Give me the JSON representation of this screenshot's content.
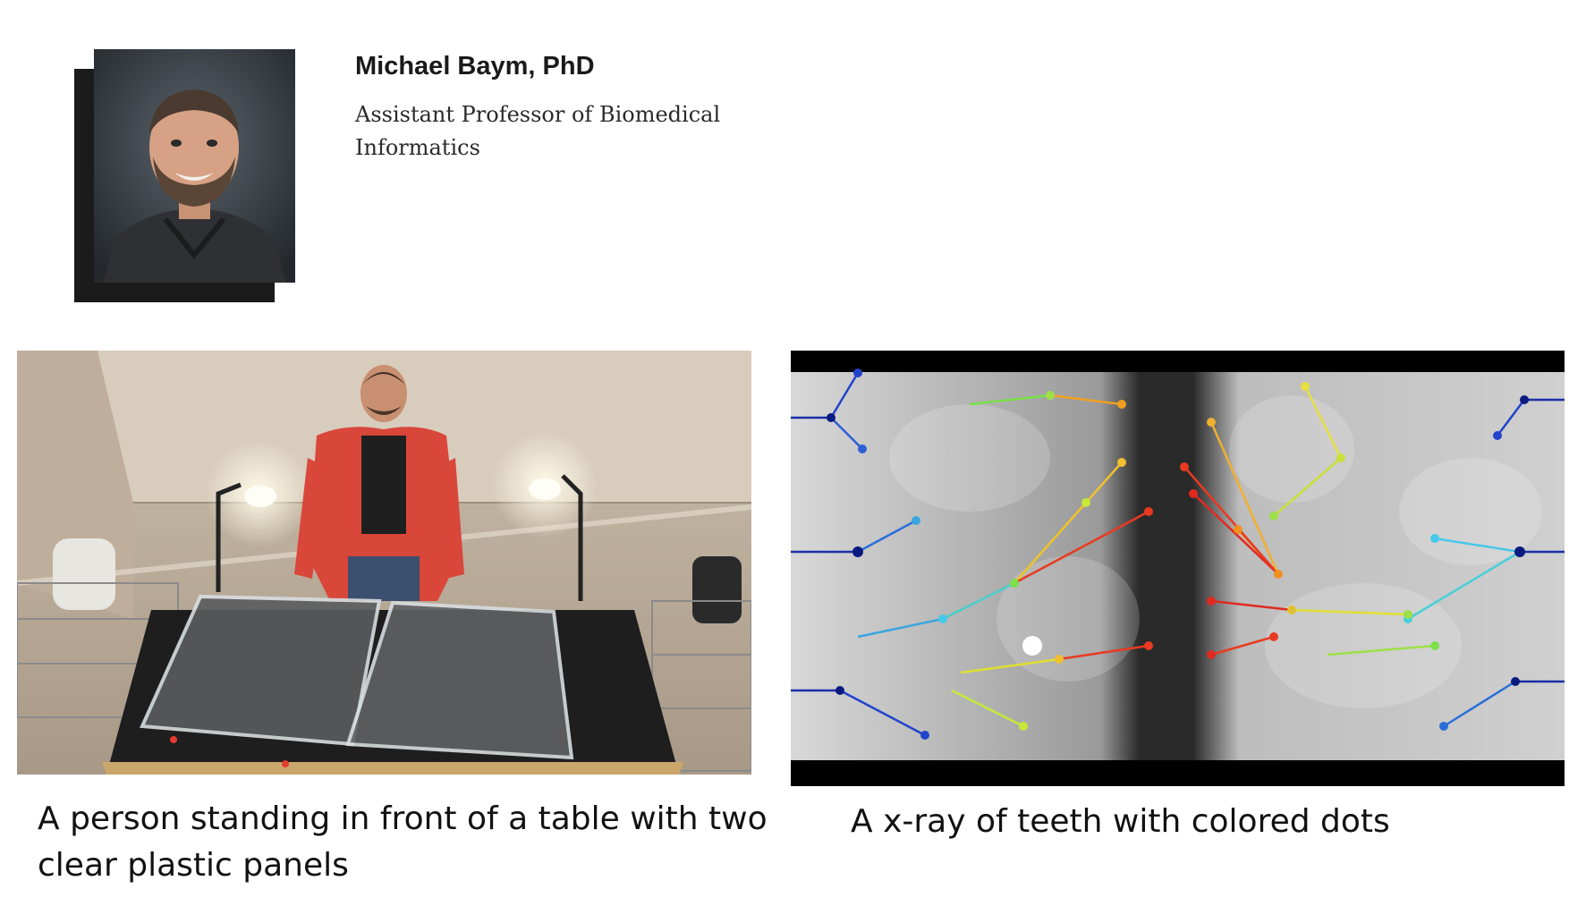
{
  "profile": {
    "name": "Michael Baym, PhD",
    "title": "Assistant Professor of Biomedical Informatics"
  },
  "images": [
    {
      "caption": "A person standing in front of a table with two clear plastic panels"
    },
    {
      "caption": "A x-ray of teeth with colored dots"
    }
  ],
  "colors": {
    "shadow": "#1b1b1b",
    "text": "#111111"
  }
}
